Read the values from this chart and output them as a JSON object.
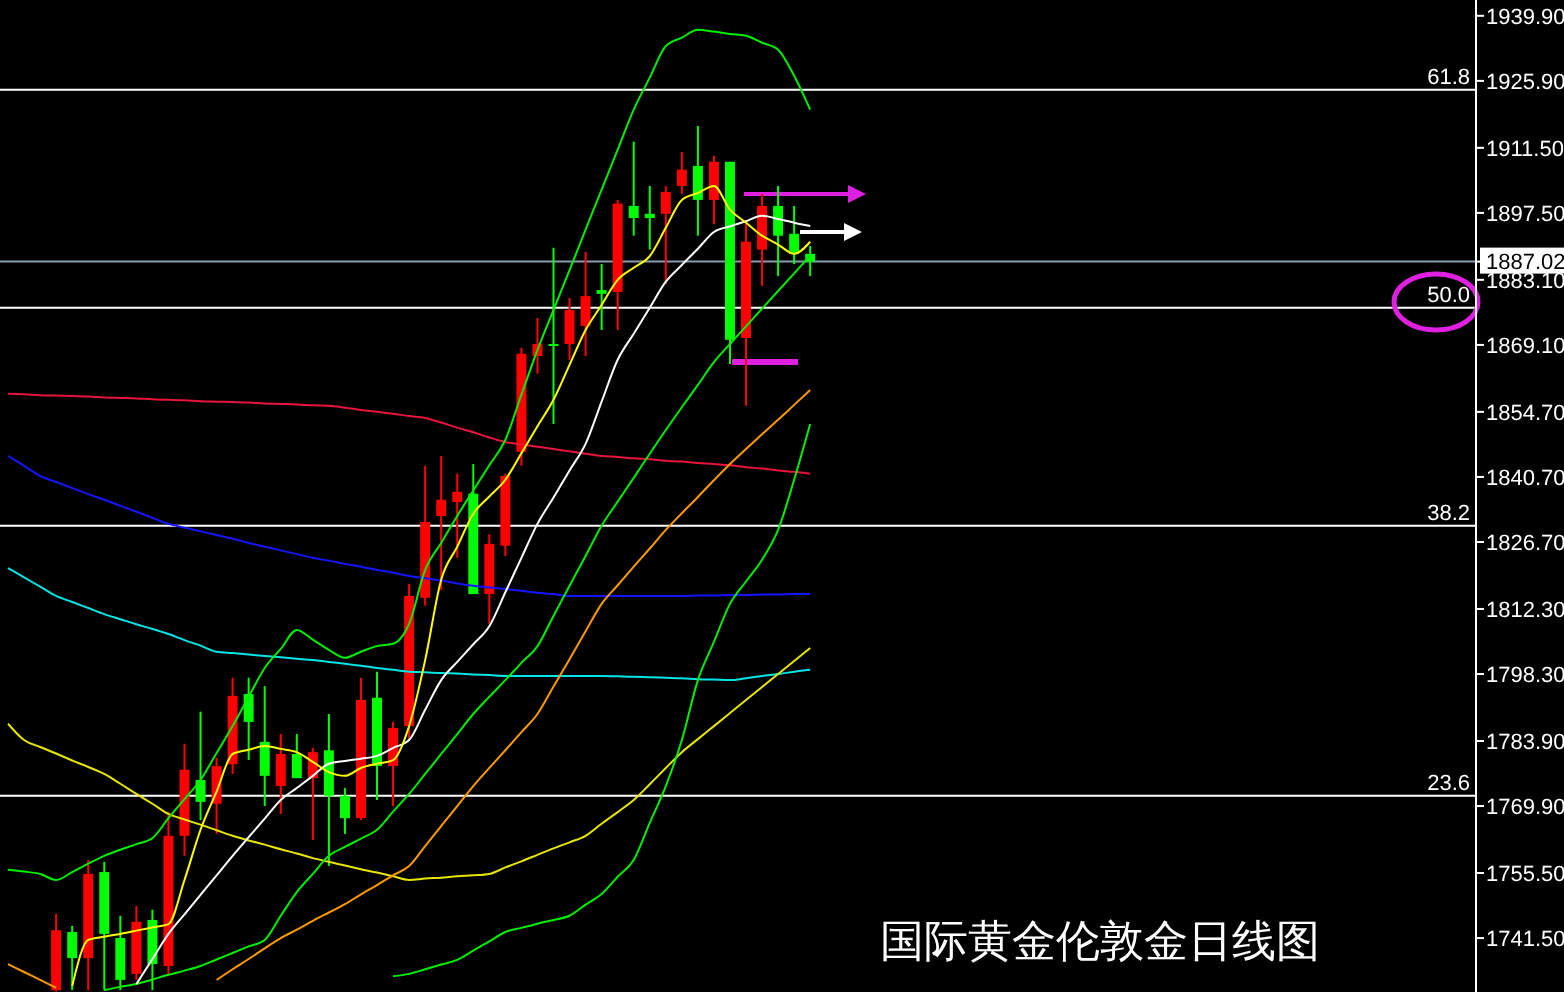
{
  "chart_data": {
    "type": "candlestick",
    "title": "国际黄金伦敦金日线图",
    "categories": [
      null,
      null,
      null,
      null,
      null,
      null,
      null,
      null,
      null,
      null,
      null,
      null,
      null,
      null,
      null,
      null,
      null,
      null,
      null,
      null,
      null,
      null,
      null,
      null,
      null,
      null,
      null,
      null,
      null,
      null,
      null,
      null,
      null,
      null,
      null,
      null,
      null,
      null,
      null,
      null,
      null,
      null,
      null,
      null,
      null,
      null,
      null,
      null,
      null,
      null,
      null,
      null,
      null,
      null,
      null,
      null,
      null,
      null,
      null,
      null,
      null,
      null,
      null,
      null,
      null,
      null,
      null,
      null,
      null,
      null,
      null,
      null,
      null,
      null,
      null,
      null,
      null,
      null,
      null,
      null,
      null,
      null,
      null,
      null,
      null,
      null,
      null,
      null,
      null,
      null,
      null,
      null
    ],
    "ohlc": [
      null,
      null,
      null,
      [
        1730.3,
        1746.7,
        1730.0,
        1743.2
      ],
      [
        1742.8,
        1744.1,
        1730.3,
        1737.2
      ],
      [
        1737.2,
        1758.3,
        1730.3,
        1755.3
      ],
      [
        1755.7,
        1757.9,
        1730.3,
        1742.4
      ],
      [
        1741.5,
        1746.3,
        1730.3,
        1732.5
      ],
      [
        1733.8,
        1748.4,
        1732.5,
        1745.0
      ],
      [
        1745.4,
        1747.6,
        1730.3,
        1735.9
      ],
      [
        1735.5,
        1768.6,
        1733.8,
        1763.5
      ],
      [
        1763.5,
        1783.3,
        1759.2,
        1777.7
      ],
      [
        1775.5,
        1790.2,
        1766.9,
        1770.8
      ],
      [
        1770.4,
        1780.3,
        1763.9,
        1778.5
      ],
      [
        1778.9,
        1797.5,
        1776.8,
        1793.6
      ],
      [
        1794.0,
        1797.5,
        1779.8,
        1788.0
      ],
      [
        1783.7,
        1795.7,
        1769.9,
        1776.4
      ],
      [
        1774.2,
        1785.4,
        1768.2,
        1781.1
      ],
      [
        1781.1,
        1785.4,
        1775.9,
        1775.9
      ],
      [
        1775.9,
        1782.4,
        1762.6,
        1781.5
      ],
      [
        1781.9,
        1789.7,
        1757.0,
        1772.1
      ],
      [
        1772.1,
        1773.8,
        1763.9,
        1767.3
      ],
      [
        1767.3,
        1797.5,
        1766.9,
        1792.7
      ],
      [
        1793.2,
        1798.8,
        1771.2,
        1778.5
      ],
      [
        1778.5,
        1788.0,
        1769.9,
        1786.7
      ],
      [
        1787.1,
        1817.7,
        1784.1,
        1815.1
      ],
      [
        1814.7,
        1843.1,
        1813.0,
        1831.0
      ],
      [
        1832.3,
        1845.2,
        1816.4,
        1835.8
      ],
      [
        1835.3,
        1841.4,
        1823.3,
        1837.5
      ],
      [
        1837.1,
        1843.5,
        1815.5,
        1815.5
      ],
      [
        1815.5,
        1828.4,
        1809.1,
        1826.3
      ],
      [
        1825.9,
        1841.4,
        1823.7,
        1840.9
      ],
      [
        1846.1,
        1868.5,
        1843.1,
        1867.2
      ],
      [
        1866.7,
        1874.9,
        1862.9,
        1869.3
      ],
      [
        1869.3,
        1890.0,
        1852.1,
        1868.9
      ],
      [
        1869.3,
        1879.2,
        1865.9,
        1876.6
      ],
      [
        1873.2,
        1889.1,
        1866.7,
        1879.6
      ],
      [
        1880.9,
        1886.5,
        1872.3,
        1880.1
      ],
      [
        1880.5,
        1900.3,
        1872.3,
        1899.5
      ],
      [
        1899.0,
        1912.8,
        1892.6,
        1896.4
      ],
      [
        1897.3,
        1903.3,
        1889.6,
        1896.4
      ],
      [
        1897.3,
        1903.3,
        1882.2,
        1902.0
      ],
      [
        1903.3,
        1910.6,
        1901.6,
        1906.8
      ],
      [
        1907.6,
        1916.2,
        1892.6,
        1900.3
      ],
      [
        1900.3,
        1909.8,
        1895.1,
        1908.5
      ],
      [
        1908.5,
        1908.5,
        1865.0,
        1870.2
      ],
      [
        1870.6,
        1895.1,
        1856.0,
        1891.3
      ],
      [
        1889.6,
        1901.6,
        1881.8,
        1899.0
      ],
      [
        1899.0,
        1903.3,
        1883.9,
        1892.6
      ],
      [
        1893.0,
        1899.0,
        1886.5,
        1888.7
      ],
      [
        1888.7,
        1890.4,
        1883.9,
        1887.02
      ],
      null,
      null,
      null,
      null,
      null,
      null,
      null,
      null,
      null,
      null,
      null,
      null,
      null,
      null,
      null,
      null,
      null,
      null,
      null,
      null,
      null,
      null,
      null,
      null,
      null,
      null,
      null,
      null,
      null,
      null,
      null,
      null,
      null,
      null,
      null,
      null,
      null,
      null,
      null,
      null,
      null
    ],
    "colors": [
      null,
      null,
      null,
      "#ff0000",
      "#00ff00",
      "#ff0000",
      "#00ff00",
      "#00ff00",
      "#ff0000",
      "#00ff00",
      "#ff0000",
      "#ff0000",
      "#00ff00",
      "#ff0000",
      "#ff0000",
      "#00ff00",
      "#00ff00",
      "#ff0000",
      "#00ff00",
      "#ff0000",
      "#00ff00",
      "#00ff00",
      "#ff0000",
      "#00ff00",
      "#ff0000",
      "#ff0000",
      "#ff0000",
      "#ff0000",
      "#ff0000",
      "#00ff00",
      "#ff0000",
      "#ff0000",
      "#ff0000",
      "#ff0000",
      "#00ff00",
      "#ff0000",
      "#ff0000",
      "#00ff00",
      "#ff0000",
      "#00ff00",
      "#00ff00",
      "#ff0000",
      "#ff0000",
      "#00ff00",
      "#ff0000",
      "#00ff00",
      "#ff0000",
      "#ff0000",
      "#00ff00",
      "#00ff00",
      "#00ff00",
      null,
      null,
      null,
      null,
      null,
      null,
      null,
      null,
      null,
      null,
      null,
      null,
      null,
      null,
      null,
      null,
      null,
      null,
      null,
      null,
      null,
      null,
      null,
      null,
      null,
      null,
      null,
      null,
      null,
      null,
      null,
      null,
      null,
      null,
      null,
      null,
      null,
      null,
      null,
      null,
      null
    ],
    "series": [
      {
        "type": "line",
        "color": "#e8143c",
        "values": [
          1858.6,
          1858.5,
          1858.3,
          1858.2,
          1858.1,
          1858.0,
          1857.8,
          1857.7,
          1857.6,
          1857.4,
          1857.3,
          1857.2,
          1857.0,
          1856.9,
          1856.8,
          1856.7,
          1856.5,
          1856.4,
          1856.3,
          1856.1,
          1856.0,
          1855.6,
          1855.1,
          1854.7,
          1854.3,
          1853.8,
          1853.4,
          1852.4,
          1851.3,
          1850.3,
          1849.2,
          1848.2,
          1847.7,
          1847.2,
          1846.7,
          1846.2,
          1845.7,
          1845.2,
          1845.0,
          1844.7,
          1844.5,
          1844.2,
          1844.0,
          1843.7,
          1843.5,
          1843.2,
          1842.8,
          1842.5,
          1842.1,
          1841.8,
          1841.4,
          null,
          null,
          null,
          null,
          null,
          null,
          null,
          null,
          null,
          null,
          null,
          null,
          null,
          null,
          null,
          null,
          null,
          null,
          null,
          null,
          null,
          null,
          null,
          null,
          null,
          null,
          null,
          null,
          null,
          null,
          null,
          null,
          null,
          null,
          null,
          null,
          null,
          null,
          null,
          null,
          null
        ]
      },
      {
        "type": "line",
        "color": "#1414ff",
        "values": [
          1845.2,
          1843.1,
          1840.9,
          1839.6,
          1838.3,
          1837.0,
          1835.8,
          1834.5,
          1833.2,
          1831.9,
          1830.6,
          1829.8,
          1829.0,
          1828.2,
          1827.4,
          1826.5,
          1825.7,
          1824.9,
          1824.1,
          1823.3,
          1822.7,
          1822.0,
          1821.4,
          1820.7,
          1820.1,
          1819.4,
          1818.9,
          1818.4,
          1817.8,
          1817.3,
          1816.9,
          1816.6,
          1816.2,
          1815.8,
          1815.5,
          1815.1,
          1815.1,
          1815.1,
          1815.1,
          1815.1,
          1815.1,
          1815.1,
          1815.1,
          1815.2,
          1815.2,
          1815.3,
          1815.3,
          1815.4,
          1815.4,
          1815.5,
          1815.5,
          null,
          null,
          null,
          null,
          null,
          null,
          null,
          null,
          null,
          null,
          null,
          null,
          null,
          null,
          null,
          null,
          null,
          null,
          null,
          null,
          null,
          null,
          null,
          null,
          null,
          null,
          null,
          null,
          null,
          null,
          null,
          null,
          null,
          null,
          null,
          null,
          null,
          null,
          null,
          null,
          null
        ]
      },
      {
        "type": "line",
        "color": "#00e5e5",
        "values": [
          1821.1,
          1819.1,
          1817.1,
          1815.1,
          1813.8,
          1812.5,
          1811.2,
          1810.1,
          1809.0,
          1808.0,
          1806.9,
          1805.6,
          1804.4,
          1803.1,
          1802.8,
          1802.5,
          1802.2,
          1801.9,
          1801.6,
          1801.3,
          1800.9,
          1800.5,
          1800.1,
          1799.6,
          1799.2,
          1798.8,
          1798.7,
          1798.5,
          1798.4,
          1798.2,
          1798.1,
          1797.9,
          1797.9,
          1797.9,
          1797.9,
          1797.9,
          1797.9,
          1797.9,
          1797.8,
          1797.7,
          1797.6,
          1797.5,
          1797.4,
          1797.2,
          1797.1,
          1797.0,
          1797.4,
          1797.9,
          1798.3,
          1798.8,
          1799.2,
          null,
          null,
          null,
          null,
          null,
          null,
          null,
          null,
          null,
          null,
          null,
          null,
          null,
          null,
          null,
          null,
          null,
          null,
          null,
          null,
          null,
          null,
          null,
          null,
          null,
          null,
          null,
          null,
          null,
          null,
          null,
          null,
          null,
          null,
          null,
          null,
          null,
          null,
          null,
          null,
          null
        ]
      },
      {
        "type": "line",
        "color": "#e6e600",
        "values": [
          1787.6,
          1784.1,
          1782.6,
          1781.2,
          1779.7,
          1778.3,
          1776.8,
          1774.7,
          1772.5,
          1770.4,
          1768.2,
          1767.0,
          1765.9,
          1764.7,
          1763.5,
          1762.5,
          1761.6,
          1760.6,
          1759.7,
          1758.7,
          1757.9,
          1757.1,
          1756.3,
          1755.6,
          1754.8,
          1754.0,
          1754.3,
          1754.5,
          1754.8,
          1755.0,
          1755.3,
          1756.7,
          1758.0,
          1759.4,
          1760.8,
          1762.1,
          1763.5,
          1766.1,
          1768.6,
          1771.2,
          1774.6,
          1778.1,
          1781.5,
          1784.3,
          1787.1,
          1789.9,
          1792.7,
          1795.5,
          1798.3,
          1801.1,
          1803.9,
          null,
          null,
          null,
          null,
          null,
          null,
          null,
          null,
          null,
          null,
          null,
          null,
          null,
          null,
          null,
          null,
          null,
          null,
          null,
          null,
          null,
          null,
          null,
          null,
          null,
          null,
          null,
          null,
          null,
          null,
          null,
          null,
          null,
          null,
          null,
          null,
          null,
          null,
          null,
          null,
          null
        ]
      },
      {
        "type": "line",
        "color": "#ff9900",
        "values": [
          1735.9,
          1734.2,
          1732.5,
          1730.8,
          null,
          null,
          null,
          null,
          null,
          null,
          null,
          null,
          null,
          1732.5,
          1734.8,
          1737.0,
          1739.3,
          1741.5,
          1743.3,
          1745.2,
          1747.0,
          1748.8,
          1750.9,
          1752.9,
          1755.0,
          1757.0,
          1761.3,
          1765.6,
          1769.9,
          1774.2,
          1778.1,
          1781.9,
          1785.8,
          1789.7,
          1795.6,
          1801.5,
          1807.5,
          1813.4,
          1817.4,
          1821.4,
          1825.3,
          1829.3,
          1832.9,
          1836.4,
          1840.0,
          1843.5,
          1846.7,
          1849.9,
          1853.0,
          1856.2,
          1859.4,
          null,
          null,
          null,
          null,
          null,
          null,
          null,
          null,
          null,
          null,
          null,
          null,
          null,
          null,
          null,
          null,
          null,
          null,
          null,
          null,
          null,
          null,
          null,
          null,
          null,
          null,
          null,
          null,
          null,
          null,
          null,
          null,
          null,
          null,
          null,
          null,
          null,
          null,
          null,
          null,
          null
        ]
      },
      {
        "type": "line",
        "color": "#00ee00",
        "values": [
          1756.2,
          1755.8,
          1755.3,
          1754.0,
          1755.7,
          1757.5,
          1759.2,
          1760.5,
          1761.7,
          1763.0,
          1767.3,
          1771.4,
          1775.5,
          1781.3,
          1787.1,
          1793.4,
          1799.6,
          1803.7,
          1807.8,
          1805.7,
          1803.5,
          1801.8,
          1803.1,
          1804.3,
          1804.8,
          1809.1,
          1820.7,
          1826.5,
          1832.3,
          1837.8,
          1843.2,
          1848.7,
          1858.4,
          1868.0,
          1876.6,
          1885.2,
          1893.9,
          1902.5,
          1911.1,
          1919.7,
          1926.6,
          1933.4,
          1935.2,
          1936.9,
          1936.5,
          1936.0,
          1935.6,
          1934.1,
          1932.6,
          1927.0,
          1919.7,
          null,
          null,
          null,
          null,
          null,
          null,
          null,
          null,
          null,
          null,
          null,
          null,
          null,
          null,
          null,
          null,
          null,
          null,
          null,
          null,
          null,
          null,
          null,
          null,
          null,
          null,
          null,
          null,
          null,
          null,
          null,
          null,
          null,
          null,
          null,
          null,
          null,
          null,
          null,
          null,
          null
        ]
      },
      {
        "type": "line",
        "color": "#00ee00",
        "values": [
          null,
          null,
          null,
          null,
          null,
          null,
          1730.3,
          1731.0,
          1731.6,
          1732.6,
          1733.6,
          1734.5,
          1735.5,
          1736.9,
          1738.3,
          1739.7,
          1741.1,
          1746.3,
          1751.4,
          1755.3,
          1759.2,
          1761.1,
          1762.9,
          1764.8,
          1768.7,
          1772.5,
          1776.8,
          1781.1,
          1785.4,
          1789.7,
          1793.4,
          1797.0,
          1800.7,
          1804.3,
          1810.8,
          1817.3,
          1823.7,
          1830.2,
          1835.4,
          1840.5,
          1845.7,
          1850.8,
          1855.7,
          1860.5,
          1865.4,
          1869.3,
          1873.1,
          1876.9,
          1880.7,
          1884.5,
          1888.3,
          null,
          null,
          null,
          null,
          null,
          null,
          null,
          null,
          null,
          null,
          null,
          null,
          null,
          null,
          null,
          null,
          null,
          null,
          null,
          null,
          null,
          null,
          null,
          null,
          null,
          null,
          null,
          null,
          null,
          null,
          null,
          null,
          null,
          null,
          null,
          null,
          null,
          null,
          null,
          null,
          null
        ]
      },
      {
        "type": "line",
        "color": "#00ee00",
        "values": [
          null,
          null,
          null,
          null,
          null,
          null,
          null,
          null,
          null,
          null,
          null,
          null,
          null,
          null,
          null,
          null,
          null,
          null,
          null,
          null,
          null,
          null,
          null,
          null,
          1733.3,
          1733.8,
          1734.8,
          1735.8,
          1736.8,
          1738.8,
          1740.8,
          1742.8,
          1743.7,
          1744.6,
          1745.4,
          1746.3,
          1748.7,
          1751.0,
          1754.7,
          1758.3,
          1766.3,
          1774.2,
          1784.1,
          1797.0,
          1805.2,
          1813.4,
          1818.2,
          1822.9,
          1829.3,
          1840.1,
          1852.1,
          null,
          null,
          null,
          null,
          null,
          null,
          null,
          null,
          null,
          null,
          null,
          null,
          null,
          null,
          null,
          null,
          null,
          null,
          null,
          null,
          null,
          null,
          null,
          null,
          null,
          null,
          null,
          null,
          null,
          null,
          null,
          null,
          null,
          null,
          null,
          null,
          null,
          null,
          null,
          null,
          null
        ]
      },
      {
        "type": "line",
        "color": "#ffffff",
        "values": [
          null,
          null,
          null,
          null,
          null,
          null,
          null,
          null,
          1731.6,
          1737.0,
          1742.4,
          1746.6,
          1750.8,
          1755.0,
          1759.2,
          1763.2,
          1767.2,
          1771.2,
          1773.8,
          1776.4,
          1779.0,
          1779.6,
          1780.1,
          1780.7,
          1782.4,
          1784.1,
          1790.6,
          1797.0,
          1800.9,
          1804.7,
          1808.6,
          1815.9,
          1823.3,
          1830.6,
          1836.3,
          1842.1,
          1847.8,
          1856.9,
          1865.9,
          1871.5,
          1877.1,
          1882.7,
          1886.3,
          1889.8,
          1893.4,
          1894.6,
          1895.7,
          1896.9,
          1896.2,
          1895.4,
          1894.7,
          null,
          null,
          null,
          null,
          null,
          null,
          null,
          null,
          null,
          null,
          null,
          null,
          null,
          null,
          null,
          null,
          null,
          null,
          null,
          null,
          null,
          null,
          null,
          null,
          null,
          null,
          null,
          null,
          null,
          null,
          null,
          null,
          null,
          null,
          null,
          null,
          null,
          null,
          null,
          null,
          null
        ]
      },
      {
        "type": "line",
        "color": "#ffff00",
        "values": [
          null,
          null,
          null,
          null,
          1731.2,
          1741.1,
          1741.8,
          1742.4,
          1743.1,
          1743.8,
          1744.5,
          1754.0,
          1764.8,
          1773.0,
          1781.1,
          1782.0,
          1782.8,
          1782.2,
          1781.5,
          1779.4,
          1777.2,
          1776.4,
          1778.1,
          1779.0,
          1779.8,
          1787.1,
          1801.3,
          1818.6,
          1825.7,
          1832.8,
          1836.5,
          1840.1,
          1845.8,
          1851.6,
          1857.3,
          1864.8,
          1872.3,
          1877.7,
          1883.1,
          1885.7,
          1888.2,
          1894.3,
          1900.3,
          1901.8,
          1903.3,
          1898.2,
          1895.4,
          1892.6,
          1890.7,
          1888.7,
          1891.3,
          null,
          null,
          null,
          null,
          null,
          null,
          null,
          null,
          null,
          null,
          null,
          null,
          null,
          null,
          null,
          null,
          null,
          null,
          null,
          null,
          null,
          null,
          null,
          null,
          null,
          null,
          null,
          null,
          null,
          null,
          null,
          null,
          null,
          null,
          null,
          null,
          null,
          null,
          null,
          null,
          null
        ]
      }
    ],
    "ylim": [
      1729.9,
      1943.3
    ],
    "yticks": [
      {
        "value": 1939.9,
        "label": "1939.90"
      },
      {
        "value": 1925.9,
        "label": "1925.90"
      },
      {
        "value": 1911.5,
        "label": "1911.50"
      },
      {
        "value": 1897.5,
        "label": "1897.50"
      },
      {
        "value": 1887.02,
        "label": "1887.02"
      },
      {
        "value": 1883.1,
        "label": "1883.10"
      },
      {
        "value": 1869.1,
        "label": "1869.10"
      },
      {
        "value": 1854.7,
        "label": "1854.70"
      },
      {
        "value": 1840.7,
        "label": "1840.70"
      },
      {
        "value": 1826.7,
        "label": "1826.70"
      },
      {
        "value": 1812.3,
        "label": "1812.30"
      },
      {
        "value": 1798.3,
        "label": "1798.30"
      },
      {
        "value": 1783.9,
        "label": "1783.90"
      },
      {
        "value": 1769.9,
        "label": "1769.90"
      },
      {
        "value": 1755.5,
        "label": "1755.50"
      },
      {
        "value": 1741.5,
        "label": "1741.50"
      }
    ],
    "tick_labels": "y",
    "ref_lines": [
      {
        "axis": "y",
        "value": 1924.0,
        "color": "#ffffff"
      },
      {
        "axis": "y",
        "value": 1877.1,
        "color": "#ffffff"
      },
      {
        "axis": "y",
        "value": 1830.2,
        "color": "#ffffff"
      },
      {
        "axis": "y",
        "value": 1772.1,
        "color": "#ffffff"
      },
      {
        "axis": "y",
        "value": 1887.02,
        "color": "#8a9cb0"
      }
    ],
    "annotations": [
      {
        "text": "61.8",
        "y": 1924.0
      },
      {
        "text": "50.0",
        "y": 1877.1
      },
      {
        "text": "38.2",
        "y": 1830.2
      },
      {
        "text": "23.6",
        "y": 1772.1
      }
    ]
  }
}
